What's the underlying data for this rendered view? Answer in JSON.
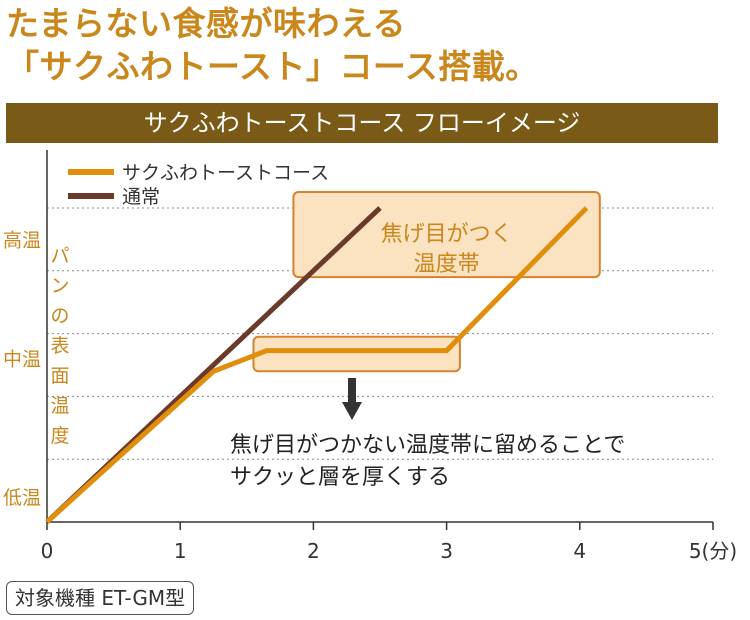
{
  "headline": {
    "line1": "たまらない食感が味わえる",
    "line2": "「サクふわトースト」コース搭載。"
  },
  "banner": "サクふわトーストコース フローイメージ",
  "model": "対象機種 ET-GM型",
  "colors": {
    "accent": "#c9871c",
    "banner": "#7a5a17",
    "toast_series": "#e08e0b",
    "normal_series": "#6b3a2a"
  },
  "chart_data": {
    "type": "line",
    "title": "",
    "xlabel": "",
    "x_unit": "(分)",
    "ylabel": "パンの表面温度",
    "xlim": [
      0,
      5
    ],
    "ylim": [
      0,
      5
    ],
    "x_ticks": [
      {
        "value": 0,
        "label": "0"
      },
      {
        "value": 1,
        "label": "1"
      },
      {
        "value": 2,
        "label": "2"
      },
      {
        "value": 3,
        "label": "3"
      },
      {
        "value": 4,
        "label": "4"
      },
      {
        "value": 5,
        "label": "5(分)"
      }
    ],
    "y_categories": [
      {
        "value": 0.4,
        "label": "低温"
      },
      {
        "value": 2.6,
        "label": "中温"
      },
      {
        "value": 4.5,
        "label": "高温"
      }
    ],
    "grid": "horizontal-dashed",
    "legend_position": "top-left",
    "series": [
      {
        "name": "サクふわトーストコース",
        "points": [
          [
            0,
            0
          ],
          [
            1.25,
            2.4
          ],
          [
            1.65,
            2.73
          ],
          [
            3.0,
            2.73
          ],
          [
            4.05,
            5.0
          ]
        ]
      },
      {
        "name": "通常",
        "points": [
          [
            0,
            0
          ],
          [
            2.5,
            5.0
          ]
        ]
      }
    ],
    "annotations": [
      {
        "text": "焦げ目がつく\n温度帯",
        "x_range": [
          1.85,
          4.15
        ],
        "y_range": [
          3.9,
          5.0
        ]
      },
      {
        "text": "",
        "x_range": [
          1.55,
          3.1
        ],
        "y_range": [
          2.4,
          2.95
        ]
      },
      {
        "text": "焦げ目がつかない温度帯に留めることで\nサクッと層を厚くする",
        "x": 1.4,
        "y": 1.2
      }
    ]
  }
}
